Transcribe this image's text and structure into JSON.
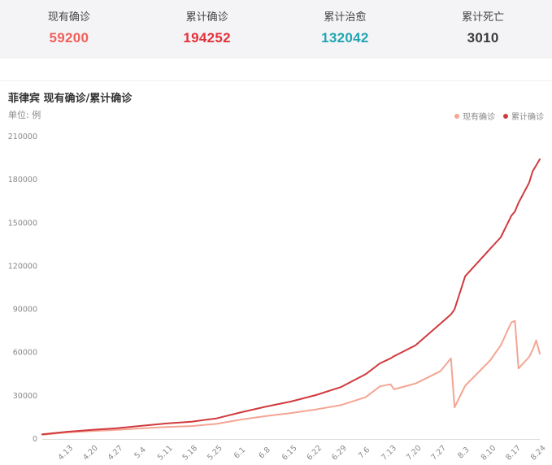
{
  "stats": [
    {
      "label": "现有确诊",
      "value": "59200",
      "color": "#f0605a"
    },
    {
      "label": "累计确诊",
      "value": "194252",
      "color": "#e2323a"
    },
    {
      "label": "累计治愈",
      "value": "132042",
      "color": "#20a5b2"
    },
    {
      "label": "累计死亡",
      "value": "3010",
      "color": "#3c3c3c"
    }
  ],
  "chart_title": "菲律宾 现有确诊/累计确诊",
  "unit_label": "单位: 例",
  "chart_data": {
    "type": "line",
    "title": "菲律宾 现有确诊/累计确诊",
    "ylim": [
      0,
      210000
    ],
    "yticks": [
      0,
      30000,
      60000,
      90000,
      120000,
      150000,
      180000,
      210000
    ],
    "x_tick_labels": [
      "4.13",
      "4.20",
      "4.27",
      "5.4",
      "5.11",
      "5.18",
      "5.25",
      "6.1",
      "6.8",
      "6.15",
      "6.22",
      "6.29",
      "7.6",
      "7.13",
      "7.20",
      "7.27",
      "8.3",
      "8.10",
      "8.17",
      "8.24"
    ],
    "grid": false,
    "legend_position": "top-right",
    "x": [
      "4.6",
      "4.13",
      "4.20",
      "4.27",
      "5.4",
      "5.11",
      "5.18",
      "5.25",
      "6.1",
      "6.8",
      "6.15",
      "6.22",
      "6.29",
      "7.6",
      "7.10",
      "7.13",
      "7.14",
      "7.20",
      "7.27",
      "7.30",
      "7.31",
      "8.3",
      "8.10",
      "8.13",
      "8.16",
      "8.17",
      "8.18",
      "8.21",
      "8.22",
      "8.23",
      "8.24"
    ],
    "series": [
      {
        "name": "现有确诊",
        "color": "#f4a593",
        "values": [
          3000,
          4500,
          5500,
          6400,
          7400,
          8300,
          9000,
          10500,
          13500,
          16000,
          18000,
          20500,
          23500,
          29000,
          36500,
          38000,
          34500,
          38500,
          47000,
          56000,
          22000,
          37000,
          54500,
          65000,
          81000,
          82000,
          49000,
          57000,
          62000,
          68500,
          59200
        ]
      },
      {
        "name": "累计确诊",
        "color": "#d03a3e",
        "values": [
          3200,
          5000,
          6300,
          7500,
          9200,
          10800,
          12000,
          14300,
          18600,
          22500,
          26000,
          30500,
          36000,
          45000,
          52500,
          56000,
          57500,
          65000,
          80000,
          86500,
          90000,
          113000,
          132000,
          140000,
          155000,
          158000,
          164000,
          178000,
          186000,
          190000,
          194252
        ]
      }
    ]
  }
}
